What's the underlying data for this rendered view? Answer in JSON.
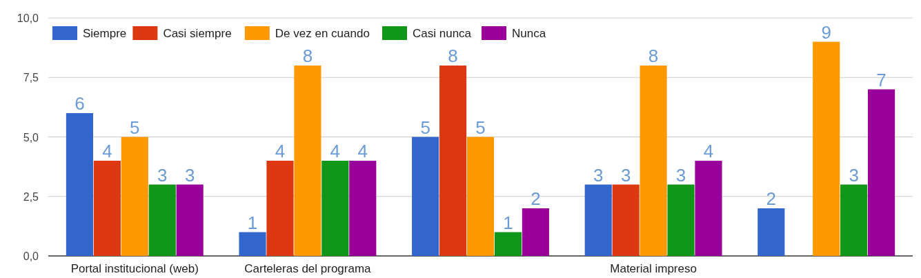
{
  "chart_data": {
    "type": "bar",
    "categories": [
      "Portal institucional (web)",
      "Carteleras del programa",
      null,
      "Material impreso",
      null
    ],
    "series": [
      {
        "name": "Siempre",
        "color": "#3366cc",
        "values": [
          6,
          1,
          5,
          3,
          2
        ]
      },
      {
        "name": "Casi siempre",
        "color": "#dc3912",
        "values": [
          4,
          4,
          8,
          3,
          null
        ]
      },
      {
        "name": "De vez en cuando",
        "color": "#ff9900",
        "values": [
          5,
          8,
          5,
          8,
          9
        ]
      },
      {
        "name": "Casi nunca",
        "color": "#109618",
        "values": [
          3,
          4,
          1,
          3,
          3
        ]
      },
      {
        "name": "Nunca",
        "color": "#990099",
        "values": [
          3,
          4,
          2,
          4,
          7
        ]
      }
    ],
    "ylim": [
      0,
      10
    ],
    "yticks": [
      {
        "value": 0,
        "label": "0,0"
      },
      {
        "value": 2.5,
        "label": "2,5"
      },
      {
        "value": 5,
        "label": "5,0"
      },
      {
        "value": 7.5,
        "label": "7,5"
      },
      {
        "value": 10,
        "label": "10,0"
      }
    ],
    "grid": "y",
    "legend": "top left",
    "data_labels": true
  }
}
